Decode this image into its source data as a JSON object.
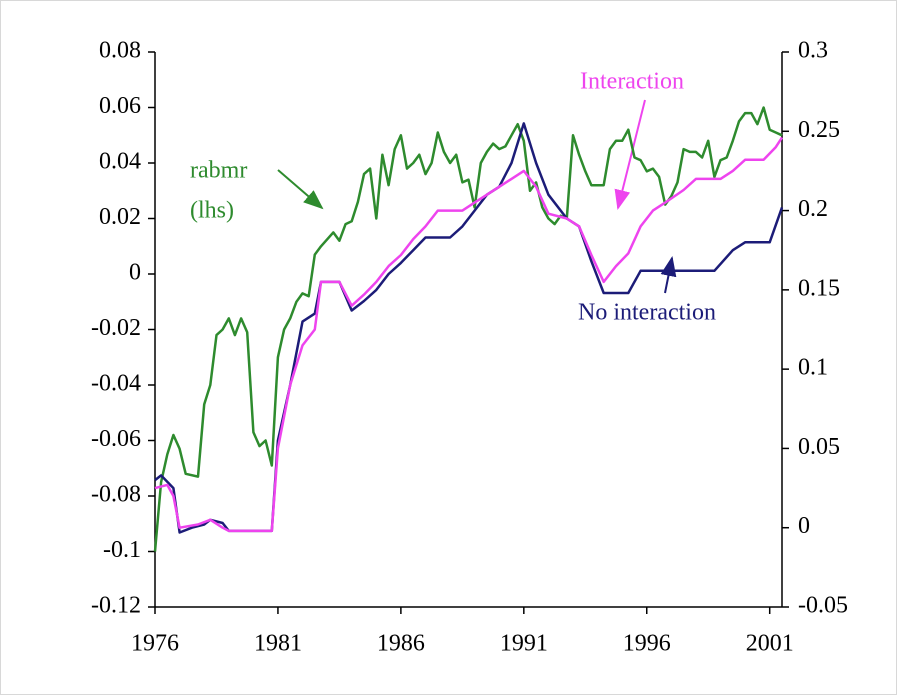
{
  "chart_data": {
    "type": "line",
    "xlim": [
      1976,
      2001.5
    ],
    "xticks": [
      1976,
      1981,
      1986,
      1991,
      1996,
      2001
    ],
    "ylim": [
      -0.12,
      0.08
    ],
    "yticks": [
      -0.12,
      -0.1,
      -0.08,
      -0.06,
      -0.04,
      -0.02,
      0,
      0.02,
      0.04,
      0.06,
      0.08
    ],
    "y2lim": [
      -0.05,
      0.3
    ],
    "y2ticks": [
      -0.05,
      0,
      0.05,
      0.1,
      0.15,
      0.2,
      0.25,
      0.3
    ],
    "annotations": [
      "rabmr",
      "(lhs)",
      "Interaction",
      "No interaction"
    ],
    "series": [
      {
        "name": "rabmr (lhs)",
        "color": "#2e8b2e",
        "x": [
          1976,
          1976.25,
          1976.5,
          1976.75,
          1977,
          1977.25,
          1977.75,
          1978,
          1978.25,
          1978.5,
          1978.75,
          1979,
          1979.25,
          1979.5,
          1979.75,
          1980,
          1980.25,
          1980.5,
          1980.75,
          1981,
          1981.25,
          1981.5,
          1981.75,
          1982,
          1982.25,
          1982.5,
          1982.75,
          1983.25,
          1983.5,
          1983.75,
          1984,
          1984.25,
          1984.5,
          1984.75,
          1985,
          1985.25,
          1985.5,
          1985.75,
          1986,
          1986.25,
          1986.5,
          1986.75,
          1987,
          1987.25,
          1987.5,
          1987.75,
          1988,
          1988.25,
          1988.5,
          1988.75,
          1989,
          1989.25,
          1989.5,
          1989.75,
          1990,
          1990.25,
          1990.5,
          1990.75,
          1991,
          1991.25,
          1991.5,
          1991.75,
          1992,
          1992.25,
          1992.5,
          1992.75,
          1993,
          1993.25,
          1993.5,
          1993.75,
          1994,
          1994.25,
          1994.5,
          1994.75,
          1995,
          1995.25,
          1995.5,
          1995.75,
          1996,
          1996.25,
          1996.5,
          1996.75,
          1997,
          1997.25,
          1997.5,
          1997.75,
          1998,
          1998.25,
          1998.5,
          1998.75,
          1999,
          1999.25,
          1999.5,
          1999.75,
          2000,
          2000.25,
          2000.5,
          2000.75,
          2001,
          2001.25,
          2001.5
        ],
        "values": [
          -0.1,
          -0.075,
          -0.065,
          -0.058,
          -0.063,
          -0.072,
          -0.073,
          -0.047,
          -0.04,
          -0.022,
          -0.02,
          -0.016,
          -0.022,
          -0.016,
          -0.021,
          -0.057,
          -0.062,
          -0.06,
          -0.069,
          -0.03,
          -0.02,
          -0.016,
          -0.01,
          -0.007,
          -0.008,
          0.007,
          0.01,
          0.015,
          0.012,
          0.018,
          0.019,
          0.026,
          0.036,
          0.038,
          0.02,
          0.043,
          0.032,
          0.045,
          0.05,
          0.038,
          0.04,
          0.043,
          0.036,
          0.04,
          0.051,
          0.044,
          0.04,
          0.043,
          0.033,
          0.034,
          0.024,
          0.04,
          0.044,
          0.047,
          0.045,
          0.046,
          0.05,
          0.054,
          0.048,
          0.03,
          0.033,
          0.024,
          0.02,
          0.018,
          0.021,
          0.02,
          0.05,
          0.043,
          0.037,
          0.032,
          0.032,
          0.032,
          0.045,
          0.048,
          0.048,
          0.052,
          0.042,
          0.041,
          0.037,
          0.038,
          0.035,
          0.025,
          0.028,
          0.033,
          0.045,
          0.044,
          0.044,
          0.042,
          0.048,
          0.035,
          0.041,
          0.042,
          0.048,
          0.055,
          0.058,
          0.058,
          0.054,
          0.06,
          0.052,
          0.051,
          0.05
        ]
      },
      {
        "name": "No interaction",
        "color": "#1c1c78",
        "axis": "y2",
        "x": [
          1976,
          1976.25,
          1976.75,
          1977,
          1977.5,
          1978,
          1978.25,
          1978.75,
          1979,
          1980.75,
          1981,
          1981.5,
          1982,
          1982.5,
          1982.75,
          1983.5,
          1984,
          1984.5,
          1985,
          1985.5,
          1986,
          1986.5,
          1987,
          1988,
          1988.5,
          1989,
          1989.5,
          1990,
          1990.5,
          1991,
          1991.5,
          1992,
          1992.75,
          1993.25,
          1993.75,
          1994.25,
          1995.25,
          1995.75,
          1996.75,
          1998.75,
          1999.5,
          2000,
          2001,
          2001.5
        ],
        "values": [
          0.03,
          0.033,
          0.025,
          -0.003,
          0,
          0.002,
          0.005,
          0.003,
          -0.002,
          -0.002,
          0.055,
          0.09,
          0.13,
          0.135,
          0.155,
          0.155,
          0.137,
          0.143,
          0.15,
          0.16,
          0.167,
          0.175,
          0.183,
          0.183,
          0.19,
          0.2,
          0.21,
          0.215,
          0.23,
          0.255,
          0.23,
          0.21,
          0.195,
          0.19,
          0.168,
          0.148,
          0.148,
          0.162,
          0.162,
          0.162,
          0.175,
          0.18,
          0.18,
          0.202
        ]
      },
      {
        "name": "Interaction",
        "color": "#ee44ee",
        "axis": "y2",
        "x": [
          1976,
          1976.5,
          1976.75,
          1977,
          1977.75,
          1978.25,
          1978.75,
          1979,
          1980.75,
          1981,
          1981.5,
          1982,
          1982.5,
          1982.75,
          1983.5,
          1984,
          1984.5,
          1985,
          1985.5,
          1986,
          1986.5,
          1987,
          1987.5,
          1988.5,
          1989,
          1989.5,
          1990,
          1990.5,
          1991,
          1991.5,
          1992,
          1992.75,
          1993.25,
          1993.75,
          1994.25,
          1994.75,
          1995.25,
          1995.75,
          1996.25,
          1996.75,
          1997.5,
          1998,
          1999,
          1999.5,
          2000,
          2000.75,
          2001.25,
          2001.5
        ],
        "values": [
          0.025,
          0.027,
          0.02,
          0,
          0.002,
          0.005,
          0,
          -0.002,
          -0.002,
          0.05,
          0.09,
          0.115,
          0.125,
          0.155,
          0.155,
          0.14,
          0.147,
          0.155,
          0.165,
          0.172,
          0.182,
          0.19,
          0.2,
          0.2,
          0.205,
          0.21,
          0.215,
          0.22,
          0.225,
          0.215,
          0.198,
          0.195,
          0.19,
          0.172,
          0.155,
          0.165,
          0.173,
          0.19,
          0.2,
          0.205,
          0.213,
          0.22,
          0.22,
          0.225,
          0.232,
          0.232,
          0.24,
          0.246
        ]
      }
    ]
  }
}
